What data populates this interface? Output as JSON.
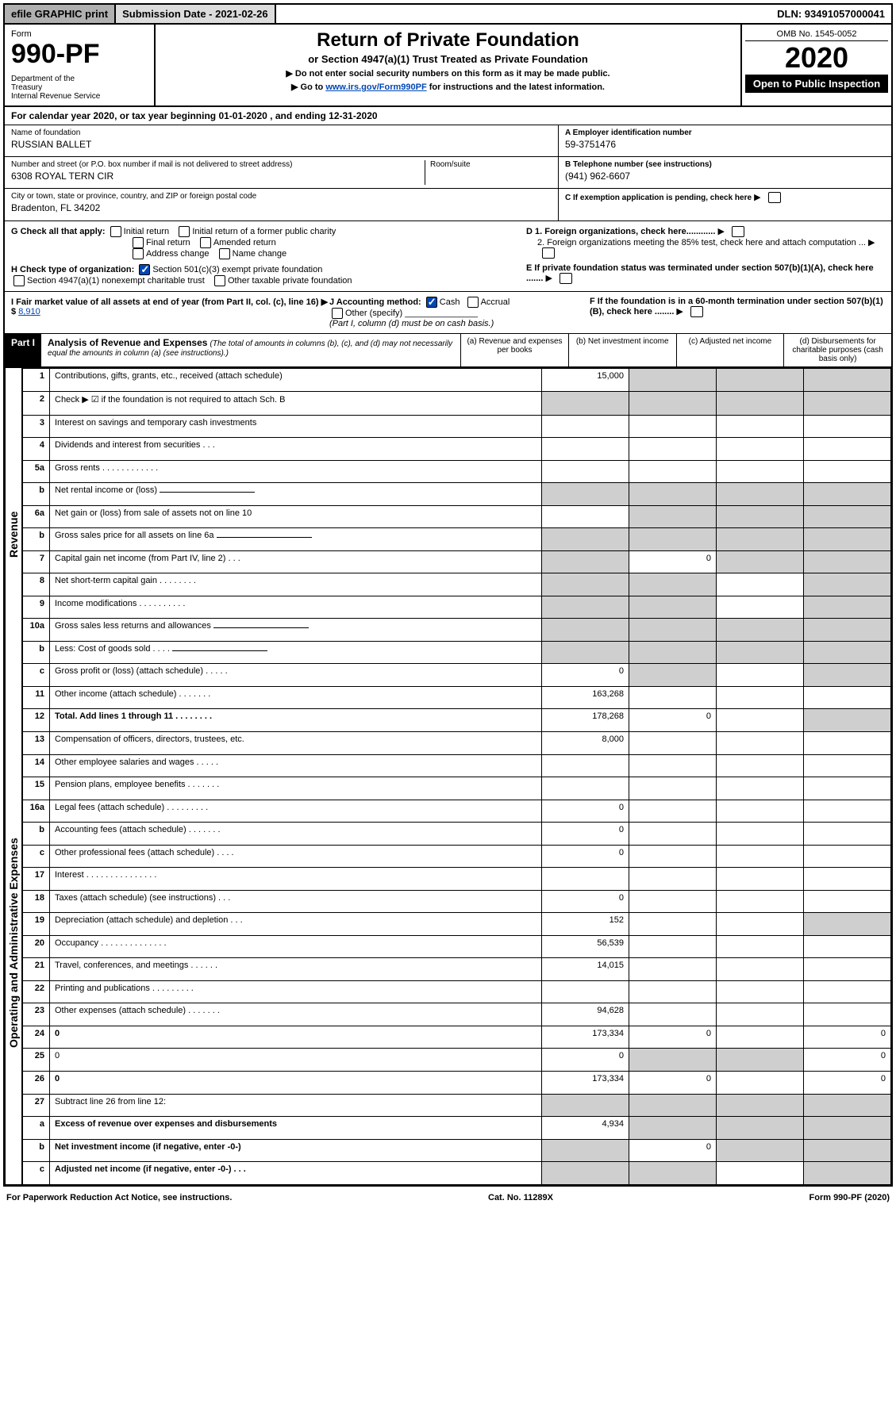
{
  "top": {
    "efile": "efile GRAPHIC print",
    "submission": "Submission Date - 2021-02-26",
    "dln": "DLN: 93491057000041"
  },
  "header": {
    "form_label": "Form",
    "form_num": "990-PF",
    "dept": "Department of the Treasury\nInternal Revenue Service",
    "title": "Return of Private Foundation",
    "subtitle": "or Section 4947(a)(1) Trust Treated as Private Foundation",
    "instr1": "▶ Do not enter social security numbers on this form as it may be made public.",
    "instr2_pre": "▶ Go to ",
    "instr2_link": "www.irs.gov/Form990PF",
    "instr2_post": " for instructions and the latest information.",
    "omb": "OMB No. 1545-0052",
    "year": "2020",
    "open": "Open to Public Inspection"
  },
  "calendar": "For calendar year 2020, or tax year beginning 01-01-2020              , and ending 12-31-2020",
  "entity": {
    "name_label": "Name of foundation",
    "name": "RUSSIAN BALLET",
    "addr_label": "Number and street (or P.O. box number if mail is not delivered to street address)",
    "addr": "6308 ROYAL TERN CIR",
    "room_label": "Room/suite",
    "city_label": "City or town, state or province, country, and ZIP or foreign postal code",
    "city": "Bradenton, FL  34202",
    "a_label": "A Employer identification number",
    "a_val": "59-3751476",
    "b_label": "B Telephone number (see instructions)",
    "b_val": "(941) 962-6607",
    "c_label": "C If exemption application is pending, check here",
    "d1": "D 1. Foreign organizations, check here............",
    "d2": "2. Foreign organizations meeting the 85% test, check here and attach computation ...",
    "e": "E  If private foundation status was terminated under section 507(b)(1)(A), check here .......",
    "f": "F  If the foundation is in a 60-month termination under section 507(b)(1)(B), check here ........"
  },
  "checks": {
    "g_label": "G Check all that apply:",
    "g_opts": [
      "Initial return",
      "Initial return of a former public charity",
      "Final return",
      "Amended return",
      "Address change",
      "Name change"
    ],
    "h_label": "H Check type of organization:",
    "h_opt1": "Section 501(c)(3) exempt private foundation",
    "h_opt2": "Section 4947(a)(1) nonexempt charitable trust",
    "h_opt3": "Other taxable private foundation",
    "i_label": "I Fair market value of all assets at end of year (from Part II, col. (c), line 16) ▶ $",
    "i_val": "8,910",
    "j_label": "J Accounting method:",
    "j_cash": "Cash",
    "j_accr": "Accrual",
    "j_other": "Other (specify)",
    "j_note": "(Part I, column (d) must be on cash basis.)"
  },
  "part1": {
    "tab": "Part I",
    "title": "Analysis of Revenue and Expenses",
    "note": "(The total of amounts in columns (b), (c), and (d) may not necessarily equal the amounts in column (a) (see instructions).)",
    "col_a": "(a)   Revenue and expenses per books",
    "col_b": "(b)  Net investment income",
    "col_c": "(c)  Adjusted net income",
    "col_d": "(d)  Disbursements for charitable purposes (cash basis only)"
  },
  "side": {
    "rev": "Revenue",
    "exp": "Operating and Administrative Expenses"
  },
  "rows": [
    {
      "n": "1",
      "d": "Contributions, gifts, grants, etc., received (attach schedule)",
      "a": "15,000",
      "shade_bcd": true
    },
    {
      "n": "2",
      "d": "Check ▶ ☑ if the foundation is not required to attach Sch. B",
      "shade_all": true,
      "bold_not": true
    },
    {
      "n": "3",
      "d": "Interest on savings and temporary cash investments"
    },
    {
      "n": "4",
      "d": "Dividends and interest from securities   .   .   ."
    },
    {
      "n": "5a",
      "d": "Gross rents   .   .   .   .   .   .   .   .   .   .   .   ."
    },
    {
      "n": "b",
      "d": "Net rental income or (loss)",
      "underline": true,
      "shade_all": true
    },
    {
      "n": "6a",
      "d": "Net gain or (loss) from sale of assets not on line 10",
      "shade_bcd": true
    },
    {
      "n": "b",
      "d": "Gross sales price for all assets on line 6a",
      "underline": true,
      "shade_all": true
    },
    {
      "n": "7",
      "d": "Capital gain net income (from Part IV, line 2)   .   .   .",
      "b": "0",
      "shade_acd": true
    },
    {
      "n": "8",
      "d": "Net short-term capital gain   .   .   .   .   .   .   .   .",
      "shade_abd": true
    },
    {
      "n": "9",
      "d": "Income modifications   .   .   .   .   .   .   .   .   .   .",
      "shade_abd": true
    },
    {
      "n": "10a",
      "d": "Gross sales less returns and allowances",
      "underline": true,
      "shade_all": true
    },
    {
      "n": "b",
      "d": "Less: Cost of goods sold   .   .   .   .",
      "underline": true,
      "shade_all": true
    },
    {
      "n": "c",
      "d": "Gross profit or (loss) (attach schedule)   .   .   .   .   .",
      "a": "0",
      "shade_bd": true
    },
    {
      "n": "11",
      "d": "Other income (attach schedule)   .   .   .   .   .   .   .",
      "a": "163,268"
    },
    {
      "n": "12",
      "d": "Total. Add lines 1 through 11   .   .   .   .   .   .   .   .",
      "a": "178,268",
      "b": "0",
      "bold": true,
      "shade_d": true
    },
    {
      "n": "13",
      "d": "Compensation of officers, directors, trustees, etc.",
      "a": "8,000"
    },
    {
      "n": "14",
      "d": "Other employee salaries and wages   .   .   .   .   ."
    },
    {
      "n": "15",
      "d": "Pension plans, employee benefits   .   .   .   .   .   .   ."
    },
    {
      "n": "16a",
      "d": "Legal fees (attach schedule)   .   .   .   .   .   .   .   .   .",
      "a": "0"
    },
    {
      "n": "b",
      "d": "Accounting fees (attach schedule)   .   .   .   .   .   .   .",
      "a": "0"
    },
    {
      "n": "c",
      "d": "Other professional fees (attach schedule)   .   .   .   .",
      "a": "0"
    },
    {
      "n": "17",
      "d": "Interest   .   .   .   .   .   .   .   .   .   .   .   .   .   .   ."
    },
    {
      "n": "18",
      "d": "Taxes (attach schedule) (see instructions)   .   .   .",
      "a": "0"
    },
    {
      "n": "19",
      "d": "Depreciation (attach schedule) and depletion   .   .   .",
      "a": "152",
      "shade_d": true
    },
    {
      "n": "20",
      "d": "Occupancy   .   .   .   .   .   .   .   .   .   .   .   .   .   .",
      "a": "56,539"
    },
    {
      "n": "21",
      "d": "Travel, conferences, and meetings   .   .   .   .   .   .",
      "a": "14,015"
    },
    {
      "n": "22",
      "d": "Printing and publications   .   .   .   .   .   .   .   .   ."
    },
    {
      "n": "23",
      "d": "Other expenses (attach schedule)   .   .   .   .   .   .   .",
      "a": "94,628"
    },
    {
      "n": "24",
      "d": "0",
      "a": "173,334",
      "b": "0",
      "bold": true
    },
    {
      "n": "25",
      "d": "0",
      "a": "0",
      "shade_bc": true
    },
    {
      "n": "26",
      "d": "0",
      "a": "173,334",
      "b": "0",
      "bold": true
    },
    {
      "n": "27",
      "d": "Subtract line 26 from line 12:",
      "shade_all": true
    },
    {
      "n": "a",
      "d": "Excess of revenue over expenses and disbursements",
      "a": "4,934",
      "bold": true,
      "shade_bcd": true
    },
    {
      "n": "b",
      "d": "Net investment income (if negative, enter -0-)",
      "b": "0",
      "bold": true,
      "shade_acd": true
    },
    {
      "n": "c",
      "d": "Adjusted net income (if negative, enter -0-)   .   .   .",
      "bold": true,
      "shade_abd": true
    }
  ],
  "footer": {
    "left": "For Paperwork Reduction Act Notice, see instructions.",
    "mid": "Cat. No. 11289X",
    "right": "Form 990-PF (2020)"
  }
}
